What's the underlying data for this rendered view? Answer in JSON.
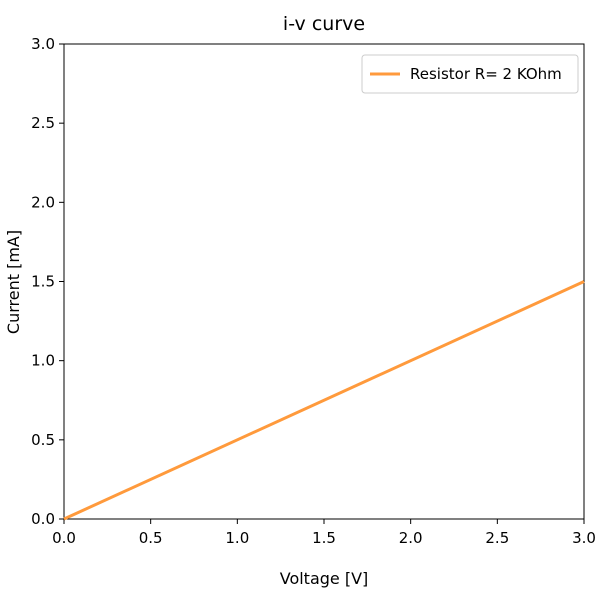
{
  "chart_data": {
    "type": "line",
    "title": "i-v curve",
    "xlabel": "Voltage [V]",
    "ylabel": "Current [mA]",
    "xlim": [
      0.0,
      3.0
    ],
    "ylim": [
      0.0,
      3.0
    ],
    "xticks": [
      "0.0",
      "0.5",
      "1.0",
      "1.5",
      "2.0",
      "2.5",
      "3.0"
    ],
    "yticks": [
      "0.0",
      "0.5",
      "1.0",
      "1.5",
      "2.0",
      "2.5",
      "3.0"
    ],
    "grid": false,
    "legend_position": "top-right",
    "series": [
      {
        "name": "Resistor R= 2 KOhm",
        "color": "#ff9a3c",
        "x": [
          0.0,
          3.0
        ],
        "y": [
          0.0,
          1.5
        ]
      }
    ]
  }
}
